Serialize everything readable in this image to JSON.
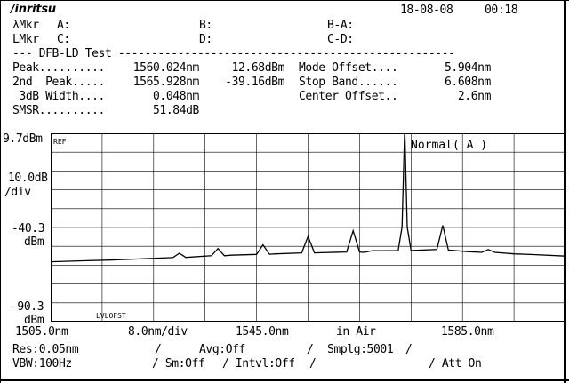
{
  "header": {
    "brand": "/inritsu",
    "date": "18-08-08",
    "time": "00:18"
  },
  "markers": {
    "lambda_label": "λMkr",
    "a_label": "A:",
    "b_label": "B:",
    "ba_label": "B-A:",
    "level_label": "LMkr",
    "c_label": "C:",
    "d_label": "D:",
    "cd_label": "C-D:"
  },
  "test": {
    "title": "--- DFB-LD Test ---------------------------------------------------",
    "rows": [
      {
        "label": "Peak..........",
        "value": "1560.024nm",
        "value2": "12.68dBm",
        "label2": "Mode Offset....",
        "value3": "5.904nm"
      },
      {
        "label": "2nd  Peak.....",
        "value": "1565.928nm",
        "value2": "-39.16dBm",
        "label2": "Stop Band......",
        "value3": "6.608nm"
      },
      {
        "label": " 3dB Width....",
        "value": "0.048nm",
        "value2": "",
        "label2": "Center Offset..",
        "value3": "2.6nm"
      },
      {
        "label": "SMSR..........",
        "value": "51.84dB",
        "value2": "",
        "label2": "",
        "value3": ""
      }
    ]
  },
  "axis": {
    "ref_level": "9.7dBm",
    "scale": "10.0dB",
    "scale_unit": "/div",
    "mid_level": "-40.3",
    "mid_unit": "dBm",
    "bottom_level": "-90.3",
    "bottom_unit": "dBm",
    "x_start": "1505.0nm",
    "x_div": "8.0nm/div",
    "x_center": "1545.0nm",
    "medium": "in Air",
    "x_stop": "1585.0nm"
  },
  "plot_labels": {
    "ref": "REF",
    "mode": "Normal( A )",
    "lvl_offset": "LVLOFST"
  },
  "settings": {
    "res": "Res:0.05nm",
    "sep1": "/",
    "avg": "Avg:Off",
    "sep2": "/",
    "smplg": "Smplg:5001",
    "sep3": "/",
    "vbw": "VBW:100Hz",
    "sm": "/ Sm:Off",
    "intvl": "/ Intvl:Off",
    "sep4": "/",
    "att": "/ Att On"
  },
  "chart_data": {
    "type": "line",
    "title": "",
    "xlabel": "",
    "ylabel": "",
    "xlim": [
      1505.0,
      1585.0
    ],
    "ylim": [
      -90.3,
      9.7
    ],
    "grid": true,
    "series": [
      {
        "x": [
          1505,
          1510,
          1515,
          1520,
          1524.0,
          1525.0,
          1526.0,
          1530,
          1531.0,
          1532.0,
          1533.0,
          1537.0,
          1538.0,
          1539.0,
          1540.0,
          1544.0,
          1545.0,
          1546.0,
          1547.0,
          1551.0,
          1552.0,
          1553.0,
          1553.5,
          1554.0,
          1555.0,
          1559.0,
          1559.6,
          1560.024,
          1560.4,
          1561.0,
          1565.0,
          1565.928,
          1566.8,
          1570,
          1572.0,
          1573.0,
          1574.0,
          1577,
          1580,
          1585
        ],
        "y": [
          -58.5,
          -58.0,
          -57.5,
          -56.8,
          -56.3,
          -54.0,
          -56.2,
          -55.3,
          -51.5,
          -55.3,
          -55.0,
          -54.6,
          -49.5,
          -54.5,
          -54.3,
          -53.8,
          -45.0,
          -53.8,
          -53.7,
          -53.3,
          -42.0,
          -53.3,
          -53.5,
          -53.3,
          -52.6,
          -52.6,
          -40.0,
          12.68,
          -40.0,
          -52.5,
          -52.0,
          -39.16,
          -52.3,
          -53.2,
          -53.5,
          -52.0,
          -53.5,
          -54.3,
          -54.7,
          -55.5
        ]
      }
    ]
  }
}
